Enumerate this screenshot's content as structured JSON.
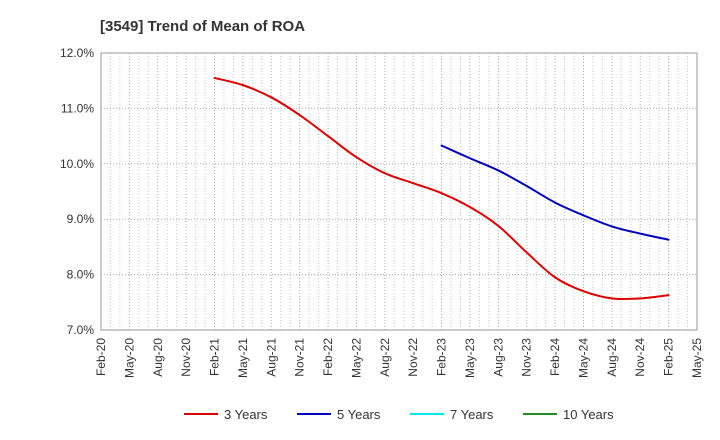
{
  "chart_data": {
    "type": "line",
    "title": "[3549]  Trend of Mean of ROA",
    "xlabel": "",
    "ylabel": "",
    "ylim": [
      7.0,
      12.0
    ],
    "y_ticks": [
      "7.0%",
      "8.0%",
      "9.0%",
      "10.0%",
      "11.0%",
      "12.0%"
    ],
    "x_ticks": [
      "Feb-20",
      "May-20",
      "Aug-20",
      "Nov-20",
      "Feb-21",
      "May-21",
      "Aug-21",
      "Nov-21",
      "Feb-22",
      "May-22",
      "Aug-22",
      "Nov-22",
      "Feb-23",
      "May-23",
      "Aug-23",
      "Nov-23",
      "Feb-24",
      "May-24",
      "Aug-24",
      "Nov-24",
      "Feb-25",
      "May-25"
    ],
    "grid": true,
    "legend_position": "bottom",
    "series": [
      {
        "name": "3 Years",
        "color": "#dd0000",
        "points": [
          [
            "Feb-21",
            11.55
          ],
          [
            "May-21",
            11.42
          ],
          [
            "Aug-21",
            11.2
          ],
          [
            "Nov-21",
            10.88
          ],
          [
            "Feb-22",
            10.5
          ],
          [
            "May-22",
            10.12
          ],
          [
            "Aug-22",
            9.83
          ],
          [
            "Nov-22",
            9.65
          ],
          [
            "Feb-23",
            9.47
          ],
          [
            "May-23",
            9.22
          ],
          [
            "Aug-23",
            8.88
          ],
          [
            "Nov-23",
            8.4
          ],
          [
            "Feb-24",
            7.95
          ],
          [
            "May-24",
            7.7
          ],
          [
            "Aug-24",
            7.57
          ],
          [
            "Nov-24",
            7.57
          ],
          [
            "Feb-25",
            7.63
          ]
        ]
      },
      {
        "name": "5 Years",
        "color": "#0000bb",
        "points": [
          [
            "Feb-23",
            10.33
          ],
          [
            "May-23",
            10.1
          ],
          [
            "Aug-23",
            9.88
          ],
          [
            "Nov-23",
            9.6
          ],
          [
            "Feb-24",
            9.3
          ],
          [
            "May-24",
            9.07
          ],
          [
            "Aug-24",
            8.87
          ],
          [
            "Nov-24",
            8.74
          ],
          [
            "Feb-25",
            8.63
          ]
        ]
      },
      {
        "name": "7 Years",
        "color": "#00e5ee",
        "points": []
      },
      {
        "name": "10 Years",
        "color": "#228b22",
        "points": []
      }
    ]
  }
}
